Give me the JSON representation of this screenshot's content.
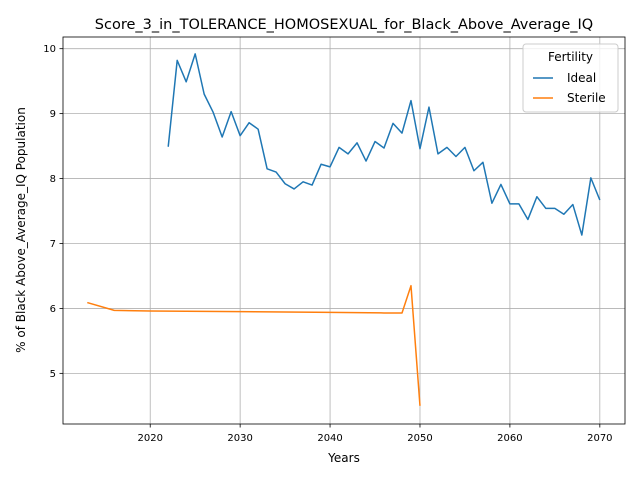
{
  "chart_data": {
    "type": "line",
    "title": "Score_3_in_TOLERANCE_HOMOSEXUAL_for_Black_Above_Average_IQ",
    "xlabel": "Years",
    "ylabel": "% of Black Above_Average_IQ Population",
    "xlim": [
      2010.3,
      2072.8
    ],
    "ylim": [
      4.22,
      10.18
    ],
    "xticks": [
      2020,
      2030,
      2040,
      2050,
      2060,
      2070
    ],
    "yticks": [
      5,
      6,
      7,
      8,
      9,
      10
    ],
    "grid": true,
    "legend": {
      "title": "Fertility",
      "placement": "top-right"
    },
    "series": [
      {
        "name": "Ideal",
        "color": "#1f77b4",
        "x": [
          2022,
          2023,
          2024,
          2025,
          2026,
          2027,
          2028,
          2029,
          2030,
          2031,
          2032,
          2033,
          2034,
          2035,
          2036,
          2037,
          2038,
          2039,
          2040,
          2041,
          2042,
          2043,
          2044,
          2045,
          2046,
          2047,
          2048,
          2049,
          2050,
          2051,
          2052,
          2053,
          2054,
          2055,
          2056,
          2057,
          2058,
          2059,
          2060,
          2061,
          2062,
          2063,
          2064,
          2065,
          2066,
          2067,
          2068,
          2069,
          2070
        ],
        "y": [
          8.49,
          9.82,
          9.49,
          9.92,
          9.3,
          9.02,
          8.64,
          9.03,
          8.66,
          8.86,
          8.76,
          8.15,
          8.1,
          7.92,
          7.84,
          7.95,
          7.9,
          8.22,
          8.18,
          8.48,
          8.38,
          8.55,
          8.27,
          8.57,
          8.47,
          8.85,
          8.7,
          9.2,
          8.46,
          9.1,
          8.38,
          8.48,
          8.34,
          8.48,
          8.12,
          8.25,
          7.62,
          7.91,
          7.61,
          7.61,
          7.37,
          7.72,
          7.54,
          7.54,
          7.45,
          7.6,
          7.13,
          8.01,
          7.67
        ]
      },
      {
        "name": "Sterile",
        "color": "#ff7f0e",
        "x": [
          2013,
          2016,
          2020,
          2030,
          2040,
          2046,
          2048,
          2049,
          2050
        ],
        "y": [
          6.09,
          5.97,
          5.96,
          5.95,
          5.94,
          5.93,
          5.93,
          6.35,
          4.5
        ]
      }
    ]
  }
}
